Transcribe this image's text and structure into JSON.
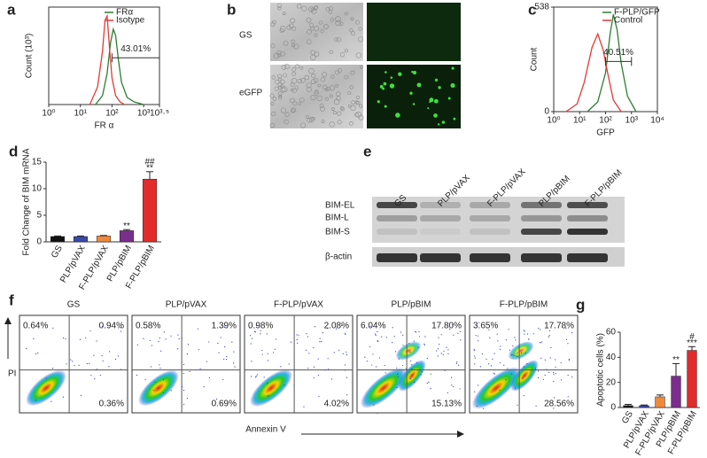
{
  "figure": {
    "panel_labels": [
      "a",
      "b",
      "c",
      "d",
      "e",
      "f",
      "g"
    ]
  },
  "microscopy": {
    "rows": [
      "GS",
      "eGFP"
    ]
  },
  "blot": {
    "lanes": [
      "GS",
      "PLP/pVAX",
      "F-PLP/pVAX",
      "PLP/pBIM",
      "F-PLP/pBIM"
    ],
    "bands": [
      "BIM-EL",
      "BIM-L",
      "BIM-S",
      "β-actin"
    ]
  },
  "flow": {
    "y_label": "PI",
    "x_label": "Annexin V",
    "plots": [
      {
        "title": "GS",
        "ul": "0.64%",
        "ur": "0.94%",
        "lr": "0.36%"
      },
      {
        "title": "PLP/pVAX",
        "ul": "0.58%",
        "ur": "1.39%",
        "lr": "0.69%"
      },
      {
        "title": "F-PLP/pVAX",
        "ul": "0.98%",
        "ur": "2.08%",
        "lr": "4.02%"
      },
      {
        "title": "PLP/pBIM",
        "ul": "6.04%",
        "ur": "17.80%",
        "lr": "15.13%"
      },
      {
        "title": "F-PLP/pBIM",
        "ul": "3.65%",
        "ur": "17.78%",
        "lr": "28.56%"
      }
    ]
  },
  "chart_data": [
    {
      "type": "line",
      "x_label": "FR α",
      "y_label": "Count (10³)",
      "log_x": true,
      "xlim": [
        1,
        3162.28
      ],
      "xticks": [
        {
          "value": 1,
          "label": "10⁰"
        },
        {
          "value": 10,
          "label": "10¹"
        },
        {
          "value": 100,
          "label": "10²"
        },
        {
          "value": 1000,
          "label": "10³"
        },
        {
          "value": 3162.28,
          "label": "10³·⁵"
        }
      ],
      "ylim": [
        0,
        1.1
      ],
      "gate": [
        100,
        3162.28
      ],
      "gate_label": "43.01%",
      "series": [
        {
          "name": "FRα",
          "color": "#2e7d32",
          "x": [
            30,
            50,
            70,
            90,
            110,
            130,
            160,
            200,
            300,
            500,
            1000
          ],
          "values": [
            0,
            0.1,
            0.35,
            0.7,
            0.85,
            0.78,
            0.5,
            0.25,
            0.08,
            0.03,
            0
          ]
        },
        {
          "name": "Isotype",
          "color": "#e53935",
          "x": [
            20,
            35,
            50,
            60,
            70,
            85,
            100,
            130,
            180,
            250
          ],
          "values": [
            0,
            0.2,
            0.6,
            0.95,
            1.0,
            0.6,
            0.3,
            0.1,
            0.03,
            0
          ]
        }
      ]
    },
    {
      "type": "line",
      "x_label": "GFP",
      "y_label": "Count",
      "log_x": true,
      "xlim": [
        1,
        10000
      ],
      "xticks": [
        {
          "value": 1,
          "label": "10⁰"
        },
        {
          "value": 10,
          "label": "10¹"
        },
        {
          "value": 100,
          "label": "10²"
        },
        {
          "value": 1000,
          "label": "10³"
        },
        {
          "value": 10000,
          "label": "10⁴"
        }
      ],
      "ylim": [
        0,
        538
      ],
      "yticks": [
        0,
        538
      ],
      "gate": [
        100,
        1000
      ],
      "gate_label": "40.51%",
      "series": [
        {
          "name": "F-PLP/GFP",
          "color": "#2e7d32",
          "x": [
            20,
            50,
            100,
            150,
            200,
            280,
            400,
            700,
            1500
          ],
          "values": [
            0,
            50,
            200,
            400,
            500,
            420,
            250,
            80,
            0
          ]
        },
        {
          "name": "Control",
          "color": "#e53935",
          "x": [
            3,
            8,
            15,
            30,
            50,
            80,
            120,
            200,
            400
          ],
          "values": [
            0,
            40,
            150,
            330,
            400,
            320,
            200,
            60,
            0
          ]
        }
      ]
    },
    {
      "type": "bar",
      "y_label": "Fold Change of BIM mRNA",
      "categories": [
        "GS",
        "PLP/pVAX",
        "F-PLP/pVAX",
        "PLP/pBIM",
        "F-PLP/pBIM"
      ],
      "values": [
        1,
        1,
        1.1,
        2.1,
        11.8
      ],
      "errors": [
        0.1,
        0.1,
        0.1,
        0.2,
        1.4
      ],
      "colors": [
        "#111111",
        "#3949ab",
        "#ef8a3c",
        "#7b2d8e",
        "#e32b2b"
      ],
      "ylim": [
        0,
        15
      ],
      "yticks": [
        0,
        5,
        10,
        15
      ],
      "annotations": [
        {
          "category": "PLP/pBIM",
          "text": "**"
        },
        {
          "category": "F-PLP/pBIM",
          "text": "**"
        },
        {
          "category": "F-PLP/pBIM",
          "text": "##"
        }
      ]
    },
    {
      "type": "bar",
      "y_label": "Apoptotic cells (%)",
      "categories": [
        "GS",
        "PLP/pVAX",
        "F-PLP/pVAX",
        "PLP/pBIM",
        "F-PLP/pBIM"
      ],
      "values": [
        1.5,
        1.5,
        8.5,
        25,
        45.5
      ],
      "errors": [
        1,
        0.5,
        1.5,
        10,
        3
      ],
      "colors": [
        "#111111",
        "#3949ab",
        "#ef8a3c",
        "#7b2d8e",
        "#e32b2b"
      ],
      "ylim": [
        0,
        60
      ],
      "yticks": [
        0,
        20,
        40,
        60
      ],
      "annotations": [
        {
          "category": "PLP/pBIM",
          "text": "**"
        },
        {
          "category": "F-PLP/pBIM",
          "text": "***"
        },
        {
          "category": "F-PLP/pBIM",
          "text": "#"
        }
      ]
    }
  ]
}
